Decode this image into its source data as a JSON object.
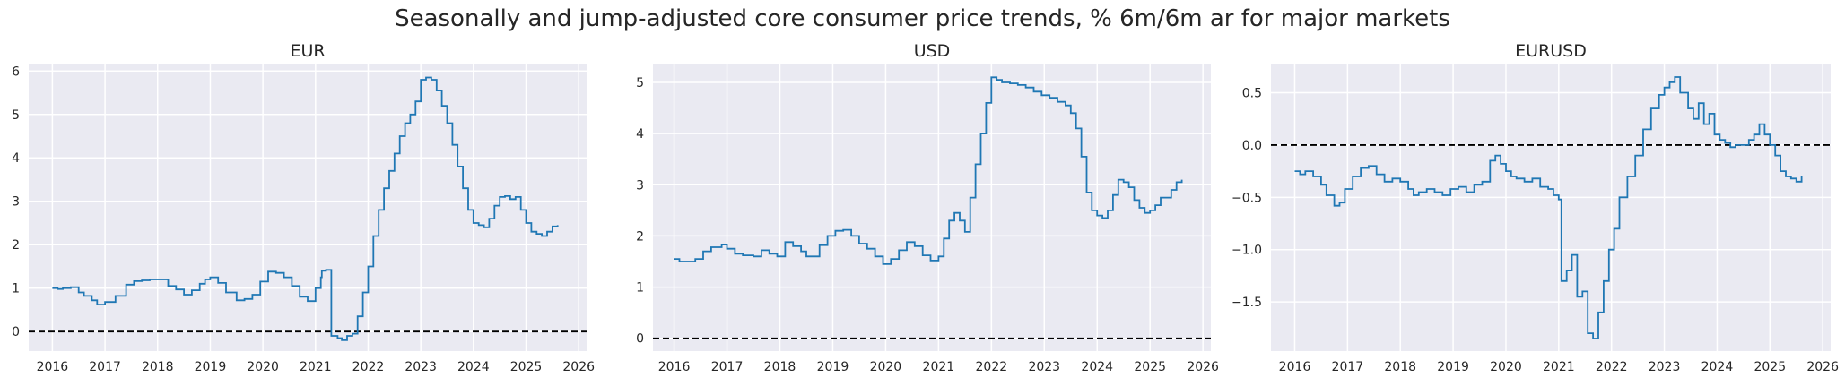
{
  "figure": {
    "title": "Seasonally and jump-adjusted core consumer price trends, % 6m/6m ar for major markets"
  },
  "colors": {
    "line": "#1f77b4",
    "axes_background": "#eaeaf2",
    "grid": "#ffffff",
    "zero_line": "#000000",
    "text": "#262626"
  },
  "chart_data": [
    {
      "type": "line",
      "title": "EUR",
      "xlabel": "",
      "ylabel": "",
      "xlim": [
        2015.55,
        2026.15
      ],
      "ylim": [
        -0.45,
        6.15
      ],
      "x_ticks": [
        2016,
        2017,
        2018,
        2019,
        2020,
        2021,
        2022,
        2023,
        2024,
        2025,
        2026
      ],
      "y_ticks": [
        0,
        1,
        2,
        3,
        4,
        5,
        6
      ],
      "y_tick_labels": [
        "0",
        "1",
        "2",
        "3",
        "4",
        "5",
        "6"
      ],
      "grid": true,
      "zero_line": {
        "y": 0,
        "style": "dashed"
      },
      "series": [
        {
          "x": [
            2016.0,
            2016.1,
            2016.2,
            2016.35,
            2016.5,
            2016.6,
            2016.75,
            2016.85,
            2017.0,
            2017.2,
            2017.4,
            2017.55,
            2017.7,
            2017.85,
            2018.0,
            2018.2,
            2018.35,
            2018.5,
            2018.65,
            2018.8,
            2018.9,
            2019.0,
            2019.15,
            2019.3,
            2019.5,
            2019.65,
            2019.8,
            2019.95,
            2020.1,
            2020.25,
            2020.4,
            2020.55,
            2020.7,
            2020.85,
            2021.0,
            2021.1,
            2021.12,
            2021.2,
            2021.3,
            2021.42,
            2021.5,
            2021.6,
            2021.7,
            2021.8,
            2021.9,
            2022.0,
            2022.1,
            2022.2,
            2022.3,
            2022.4,
            2022.5,
            2022.6,
            2022.7,
            2022.8,
            2022.9,
            2023.0,
            2023.1,
            2023.2,
            2023.3,
            2023.4,
            2023.5,
            2023.6,
            2023.7,
            2023.8,
            2023.9,
            2024.0,
            2024.1,
            2024.2,
            2024.3,
            2024.4,
            2024.5,
            2024.6,
            2024.7,
            2024.8,
            2024.9,
            2025.0,
            2025.1,
            2025.2,
            2025.3,
            2025.4,
            2025.5,
            2025.6
          ],
          "y": [
            1.0,
            0.98,
            1.0,
            1.02,
            0.9,
            0.82,
            0.72,
            0.62,
            0.68,
            0.82,
            1.08,
            1.16,
            1.18,
            1.2,
            1.2,
            1.05,
            0.97,
            0.85,
            0.95,
            1.1,
            1.2,
            1.25,
            1.12,
            0.9,
            0.72,
            0.75,
            0.85,
            1.15,
            1.38,
            1.35,
            1.25,
            1.05,
            0.8,
            0.7,
            1.0,
            1.25,
            1.4,
            1.42,
            -0.1,
            -0.15,
            -0.2,
            -0.1,
            -0.05,
            0.35,
            0.9,
            1.5,
            2.2,
            2.8,
            3.3,
            3.7,
            4.1,
            4.5,
            4.8,
            5.0,
            5.3,
            5.8,
            5.85,
            5.8,
            5.55,
            5.2,
            4.8,
            4.3,
            3.8,
            3.3,
            2.8,
            2.5,
            2.45,
            2.4,
            2.6,
            2.9,
            3.1,
            3.12,
            3.05,
            3.1,
            2.8,
            2.5,
            2.3,
            2.25,
            2.2,
            2.3,
            2.42,
            2.45
          ]
        }
      ]
    },
    {
      "type": "line",
      "title": "USD",
      "xlabel": "",
      "ylabel": "",
      "xlim": [
        2015.6,
        2026.15
      ],
      "ylim": [
        -0.25,
        5.35
      ],
      "x_ticks": [
        2016,
        2017,
        2018,
        2019,
        2020,
        2021,
        2022,
        2023,
        2024,
        2025,
        2026
      ],
      "y_ticks": [
        0,
        1,
        2,
        3,
        4,
        5
      ],
      "y_tick_labels": [
        "0",
        "1",
        "2",
        "3",
        "4",
        "5"
      ],
      "grid": true,
      "zero_line": {
        "y": 0,
        "style": "dashed"
      },
      "series": [
        {
          "x": [
            2016.0,
            2016.1,
            2016.2,
            2016.4,
            2016.55,
            2016.7,
            2016.9,
            2017.0,
            2017.15,
            2017.3,
            2017.5,
            2017.65,
            2017.8,
            2017.95,
            2018.1,
            2018.25,
            2018.4,
            2018.5,
            2018.6,
            2018.75,
            2018.9,
            2019.05,
            2019.2,
            2019.35,
            2019.5,
            2019.65,
            2019.8,
            2019.95,
            2020.1,
            2020.25,
            2020.4,
            2020.55,
            2020.7,
            2020.85,
            2021.0,
            2021.1,
            2021.2,
            2021.3,
            2021.4,
            2021.5,
            2021.6,
            2021.7,
            2021.8,
            2021.9,
            2022.0,
            2022.1,
            2022.2,
            2022.35,
            2022.5,
            2022.65,
            2022.8,
            2022.95,
            2023.1,
            2023.25,
            2023.4,
            2023.5,
            2023.6,
            2023.7,
            2023.8,
            2023.9,
            2024.0,
            2024.1,
            2024.2,
            2024.3,
            2024.4,
            2024.5,
            2024.6,
            2024.7,
            2024.8,
            2024.9,
            2025.0,
            2025.1,
            2025.2,
            2025.3,
            2025.4,
            2025.5,
            2025.6
          ],
          "y": [
            1.55,
            1.5,
            1.5,
            1.55,
            1.7,
            1.78,
            1.83,
            1.75,
            1.65,
            1.62,
            1.6,
            1.72,
            1.65,
            1.6,
            1.88,
            1.8,
            1.7,
            1.6,
            1.6,
            1.82,
            2.0,
            2.1,
            2.12,
            2.0,
            1.85,
            1.75,
            1.6,
            1.45,
            1.55,
            1.72,
            1.88,
            1.8,
            1.62,
            1.52,
            1.6,
            1.95,
            2.3,
            2.45,
            2.3,
            2.08,
            2.75,
            3.4,
            4.0,
            4.6,
            5.1,
            5.05,
            5.0,
            4.98,
            4.95,
            4.9,
            4.82,
            4.75,
            4.7,
            4.62,
            4.55,
            4.4,
            4.1,
            3.55,
            2.85,
            2.5,
            2.4,
            2.35,
            2.5,
            2.8,
            3.1,
            3.05,
            2.95,
            2.7,
            2.55,
            2.45,
            2.5,
            2.6,
            2.75,
            2.75,
            2.9,
            3.05,
            3.1
          ]
        }
      ]
    },
    {
      "type": "line",
      "title": "EURUSD",
      "xlabel": "",
      "ylabel": "",
      "xlim": [
        2015.55,
        2026.15
      ],
      "ylim": [
        -1.97,
        0.77
      ],
      "x_ticks": [
        2016,
        2017,
        2018,
        2019,
        2020,
        2021,
        2022,
        2023,
        2024,
        2025,
        2026
      ],
      "y_ticks": [
        -1.5,
        -1.0,
        -0.5,
        0.0,
        0.5
      ],
      "y_tick_labels": [
        "−1.5",
        "−1.0",
        "−0.5",
        "0.0",
        "0.5"
      ],
      "grid": true,
      "zero_line": {
        "y": 0,
        "style": "dashed"
      },
      "series": [
        {
          "x": [
            2016.0,
            2016.1,
            2016.2,
            2016.35,
            2016.5,
            2016.6,
            2016.75,
            2016.85,
            2016.95,
            2017.1,
            2017.25,
            2017.4,
            2017.55,
            2017.7,
            2017.85,
            2018.0,
            2018.15,
            2018.25,
            2018.35,
            2018.5,
            2018.65,
            2018.8,
            2018.95,
            2019.1,
            2019.25,
            2019.4,
            2019.55,
            2019.7,
            2019.8,
            2019.9,
            2020.0,
            2020.1,
            2020.2,
            2020.35,
            2020.5,
            2020.65,
            2020.8,
            2020.9,
            2021.0,
            2021.05,
            2021.15,
            2021.25,
            2021.35,
            2021.45,
            2021.55,
            2021.65,
            2021.75,
            2021.85,
            2021.95,
            2022.05,
            2022.15,
            2022.3,
            2022.45,
            2022.6,
            2022.75,
            2022.9,
            2023.0,
            2023.1,
            2023.2,
            2023.3,
            2023.45,
            2023.55,
            2023.65,
            2023.75,
            2023.85,
            2023.95,
            2024.05,
            2024.15,
            2024.25,
            2024.35,
            2024.5,
            2024.6,
            2024.7,
            2024.8,
            2024.9,
            2025.0,
            2025.1,
            2025.2,
            2025.3,
            2025.4,
            2025.5,
            2025.6
          ],
          "y": [
            -0.25,
            -0.28,
            -0.25,
            -0.3,
            -0.38,
            -0.48,
            -0.58,
            -0.55,
            -0.42,
            -0.3,
            -0.22,
            -0.2,
            -0.28,
            -0.35,
            -0.32,
            -0.35,
            -0.42,
            -0.48,
            -0.45,
            -0.42,
            -0.45,
            -0.48,
            -0.42,
            -0.4,
            -0.45,
            -0.38,
            -0.35,
            -0.15,
            -0.1,
            -0.18,
            -0.25,
            -0.3,
            -0.32,
            -0.35,
            -0.32,
            -0.4,
            -0.42,
            -0.48,
            -0.52,
            -1.3,
            -1.2,
            -1.05,
            -1.45,
            -1.4,
            -1.8,
            -1.85,
            -1.6,
            -1.3,
            -1.0,
            -0.8,
            -0.5,
            -0.3,
            -0.1,
            0.15,
            0.35,
            0.48,
            0.55,
            0.6,
            0.65,
            0.5,
            0.35,
            0.25,
            0.4,
            0.2,
            0.3,
            0.1,
            0.05,
            0.02,
            -0.02,
            0.0,
            0.0,
            0.05,
            0.1,
            0.2,
            0.1,
            0.0,
            -0.1,
            -0.25,
            -0.3,
            -0.32,
            -0.35,
            -0.3
          ]
        }
      ]
    }
  ]
}
